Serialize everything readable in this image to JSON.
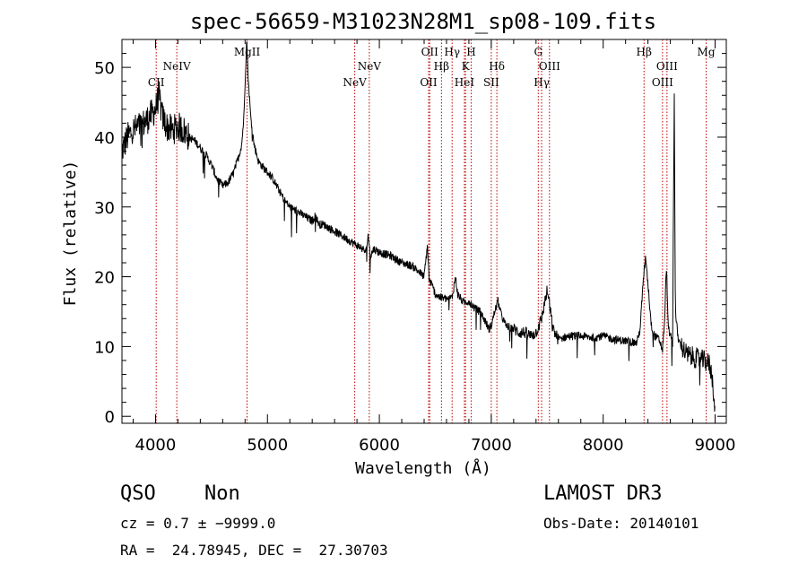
{
  "chart_data": {
    "type": "line",
    "title": "spec-56659-M31023N28M1_sp08-109.fits",
    "xlabel": "Wavelength (Å)",
    "ylabel": "Flux (relative)",
    "xlim": [
      3700,
      9100
    ],
    "ylim": [
      -1,
      54
    ],
    "xticks": [
      {
        "value": 4000,
        "label": "4000"
      },
      {
        "value": 5000,
        "label": "5000"
      },
      {
        "value": 6000,
        "label": "6000"
      },
      {
        "value": 7000,
        "label": "7000"
      },
      {
        "value": 8000,
        "label": "8000"
      },
      {
        "value": 9000,
        "label": "9000"
      }
    ],
    "yticks": [
      {
        "value": 0,
        "label": "0"
      },
      {
        "value": 10,
        "label": "10"
      },
      {
        "value": 20,
        "label": "20"
      },
      {
        "value": 30,
        "label": "30"
      },
      {
        "value": 40,
        "label": "40"
      },
      {
        "value": 50,
        "label": "50"
      }
    ],
    "spectrum_anchors": [
      [
        3700,
        38
      ],
      [
        3750,
        40
      ],
      [
        3800,
        41
      ],
      [
        3850,
        41.5
      ],
      [
        3900,
        42
      ],
      [
        3950,
        43
      ],
      [
        4000,
        44
      ],
      [
        4030,
        46
      ],
      [
        4060,
        43
      ],
      [
        4100,
        41.5
      ],
      [
        4150,
        41
      ],
      [
        4200,
        41.5
      ],
      [
        4250,
        41
      ],
      [
        4300,
        40
      ],
      [
        4350,
        39.5
      ],
      [
        4400,
        38.5
      ],
      [
        4450,
        37.5
      ],
      [
        4500,
        36
      ],
      [
        4550,
        34
      ],
      [
        4600,
        33
      ],
      [
        4650,
        33.5
      ],
      [
        4700,
        35
      ],
      [
        4740,
        37
      ],
      [
        4770,
        39
      ],
      [
        4790,
        43
      ],
      [
        4805,
        50
      ],
      [
        4815,
        54
      ],
      [
        4830,
        48
      ],
      [
        4850,
        43
      ],
      [
        4880,
        39
      ],
      [
        4920,
        36.5
      ],
      [
        4970,
        35.5
      ],
      [
        5000,
        35
      ],
      [
        5050,
        34
      ],
      [
        5100,
        32.5
      ],
      [
        5150,
        31
      ],
      [
        5200,
        30
      ],
      [
        5250,
        29.5
      ],
      [
        5300,
        29
      ],
      [
        5350,
        28.5
      ],
      [
        5400,
        28
      ],
      [
        5430,
        28.8
      ],
      [
        5460,
        27.5
      ],
      [
        5500,
        27.5
      ],
      [
        5550,
        27
      ],
      [
        5600,
        26.5
      ],
      [
        5650,
        26
      ],
      [
        5700,
        25.5
      ],
      [
        5750,
        25
      ],
      [
        5800,
        24.5
      ],
      [
        5850,
        24
      ],
      [
        5880,
        23.5
      ],
      [
        5900,
        26
      ],
      [
        5920,
        23
      ],
      [
        5950,
        24
      ],
      [
        6000,
        23.5
      ],
      [
        6100,
        23
      ],
      [
        6200,
        22
      ],
      [
        6300,
        21.5
      ],
      [
        6400,
        20
      ],
      [
        6430,
        24.5
      ],
      [
        6445,
        19.5
      ],
      [
        6470,
        18.8
      ],
      [
        6500,
        17.5
      ],
      [
        6550,
        17
      ],
      [
        6600,
        16.8
      ],
      [
        6650,
        17
      ],
      [
        6680,
        20
      ],
      [
        6700,
        17.5
      ],
      [
        6750,
        16.3
      ],
      [
        6800,
        16.5
      ],
      [
        6850,
        15.5
      ],
      [
        6900,
        15
      ],
      [
        6950,
        13.5
      ],
      [
        6980,
        12.5
      ],
      [
        7000,
        13
      ],
      [
        7030,
        15
      ],
      [
        7060,
        16.5
      ],
      [
        7090,
        14.5
      ],
      [
        7130,
        13
      ],
      [
        7200,
        12.5
      ],
      [
        7250,
        12
      ],
      [
        7300,
        12
      ],
      [
        7350,
        11.5
      ],
      [
        7400,
        12
      ],
      [
        7450,
        14
      ],
      [
        7480,
        16.5
      ],
      [
        7500,
        18
      ],
      [
        7520,
        16
      ],
      [
        7550,
        12.5
      ],
      [
        7600,
        11
      ],
      [
        7650,
        11.3
      ],
      [
        7700,
        11.5
      ],
      [
        7800,
        11.5
      ],
      [
        7900,
        11.3
      ],
      [
        8000,
        11.5
      ],
      [
        8100,
        11
      ],
      [
        8200,
        10.8
      ],
      [
        8300,
        10.5
      ],
      [
        8330,
        12.5
      ],
      [
        8360,
        20
      ],
      [
        8380,
        23
      ],
      [
        8400,
        19
      ],
      [
        8430,
        13
      ],
      [
        8460,
        11.5
      ],
      [
        8500,
        11
      ],
      [
        8530,
        9.5
      ],
      [
        8550,
        14
      ],
      [
        8565,
        22
      ],
      [
        8580,
        13
      ],
      [
        8600,
        11.5
      ],
      [
        8620,
        10.5
      ],
      [
        8635,
        46.5
      ],
      [
        8645,
        15
      ],
      [
        8670,
        11
      ],
      [
        8700,
        10
      ],
      [
        8750,
        8.8
      ],
      [
        8800,
        8.5
      ],
      [
        8850,
        8.2
      ],
      [
        8900,
        8
      ],
      [
        8950,
        7.5
      ],
      [
        8980,
        5
      ],
      [
        9000,
        0
      ]
    ],
    "emission_lines": [
      {
        "name": "CII",
        "wavelength": 4006,
        "label_row": 2
      },
      {
        "name": "NeIV",
        "wavelength": 4190,
        "label_row": 1
      },
      {
        "name": "MgII",
        "wavelength": 4818,
        "label_row": 0
      },
      {
        "name": "NeV",
        "wavelength": 5780,
        "label_row": 2
      },
      {
        "name": "NeV",
        "wavelength": 5910,
        "label_row": 1
      },
      {
        "name": "OII",
        "wavelength": 6450,
        "label_row": 0
      },
      {
        "name": "OII",
        "wavelength": 6440,
        "label_row": 2
      },
      {
        "name": "Hβ",
        "wavelength": 6555,
        "label_row": 1
      },
      {
        "name": "Hγ",
        "wavelength": 6650,
        "label_row": 0
      },
      {
        "name": "HeI",
        "wavelength": 6760,
        "label_row": 2
      },
      {
        "name": "K",
        "wavelength": 6770,
        "label_row": 1
      },
      {
        "name": "H",
        "wavelength": 6820,
        "label_row": 0
      },
      {
        "name": "Hδ",
        "wavelength": 7050,
        "label_row": 1
      },
      {
        "name": "SII",
        "wavelength": 7000,
        "label_row": 2
      },
      {
        "name": "G",
        "wavelength": 7420,
        "label_row": 0
      },
      {
        "name": "OIII",
        "wavelength": 7520,
        "label_row": 1
      },
      {
        "name": "Hγ",
        "wavelength": 7450,
        "label_row": 2
      },
      {
        "name": "Hβ",
        "wavelength": 8365,
        "label_row": 0
      },
      {
        "name": "OIII",
        "wavelength": 8570,
        "label_row": 1
      },
      {
        "name": "OIII",
        "wavelength": 8530,
        "label_row": 2
      },
      {
        "name": "Mg",
        "wavelength": 8920,
        "label_row": 0
      }
    ],
    "annotations": {
      "class": "QSO",
      "subclass": "Non",
      "survey": "LAMOST DR3",
      "cz": "cz = 0.7 ± −9999.0",
      "obs_date": "Obs-Date: 20140101",
      "coords": "RA =  24.78945, DEC =  27.30703"
    },
    "colors": {
      "spectrum": "#000000",
      "lines": "#c00000"
    }
  }
}
